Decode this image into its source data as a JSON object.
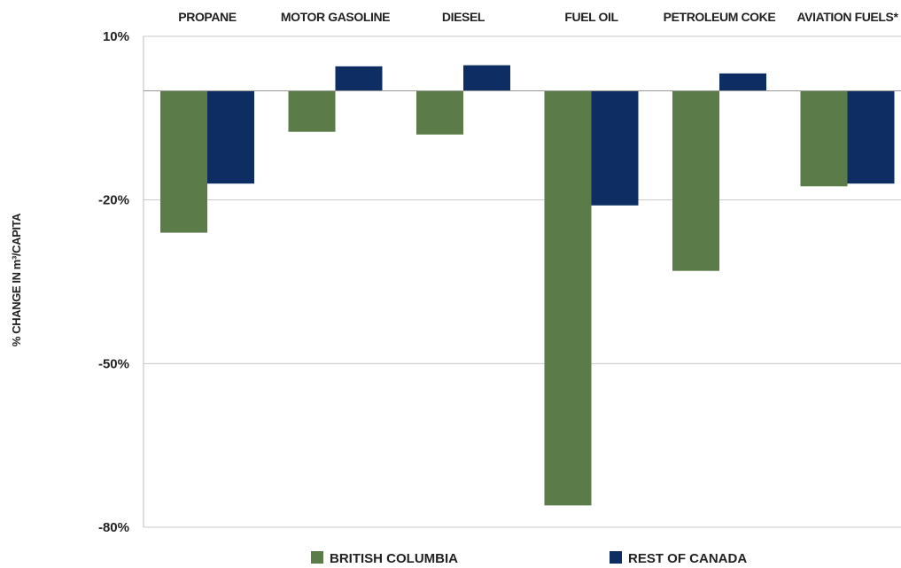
{
  "chart_data": {
    "type": "bar",
    "categories": [
      "PROPANE",
      "MOTOR GASOLINE",
      "DIESEL",
      "FUEL OIL",
      "PETROLEUM COKE",
      "AVIATION FUELS*"
    ],
    "series": [
      {
        "name": "BRITISH COLUMBIA",
        "color": "#5b7b48",
        "values": [
          -26,
          -7.5,
          -8,
          -76,
          -33,
          -17.5
        ]
      },
      {
        "name": "REST OF CANADA",
        "color": "#0e2d62",
        "values": [
          -17,
          4.5,
          4.7,
          -21,
          3.2,
          -17
        ]
      }
    ],
    "title": "",
    "xlabel": "",
    "ylabel": "% CHANGE IN m³/CAPITA",
    "yticks": [
      10,
      -20,
      -50,
      -80
    ],
    "ytick_labels": [
      "10%",
      "-20%",
      "-50%",
      "-80%"
    ],
    "ylim": [
      -80,
      10
    ],
    "grid": true,
    "legend_position": "bottom"
  }
}
